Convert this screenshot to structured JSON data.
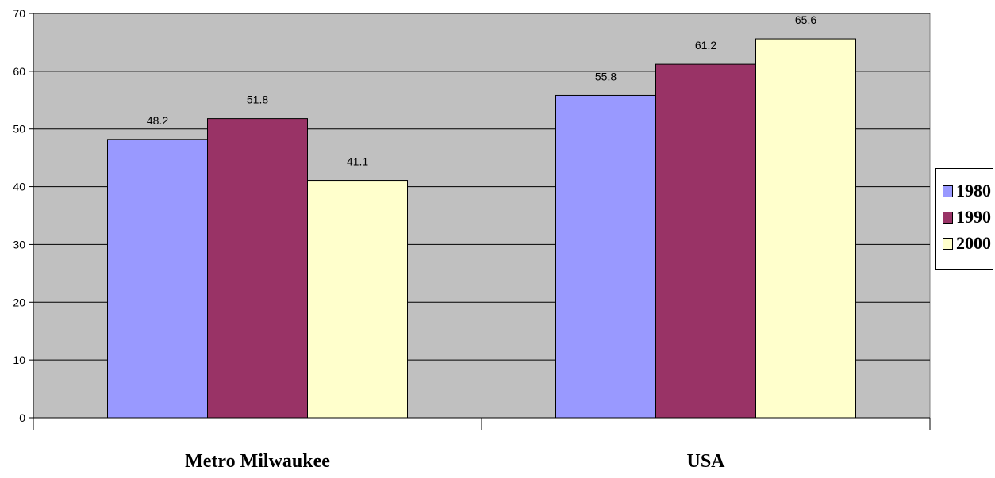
{
  "chart_data": {
    "type": "bar",
    "categories": [
      "Metro Milwaukee",
      "USA"
    ],
    "series": [
      {
        "name": "1980",
        "values": [
          48.2,
          55.8
        ],
        "color": "#9999ff"
      },
      {
        "name": "1990",
        "values": [
          51.8,
          61.2
        ],
        "color": "#993366"
      },
      {
        "name": "2000",
        "values": [
          41.1,
          65.6
        ],
        "color": "#ffffcc"
      }
    ],
    "ylim": [
      0,
      70
    ],
    "yticks": [
      0,
      10,
      20,
      30,
      40,
      50,
      60,
      70
    ],
    "grid": true,
    "plot_background": "#c0c0c0",
    "legend_position": "right"
  }
}
